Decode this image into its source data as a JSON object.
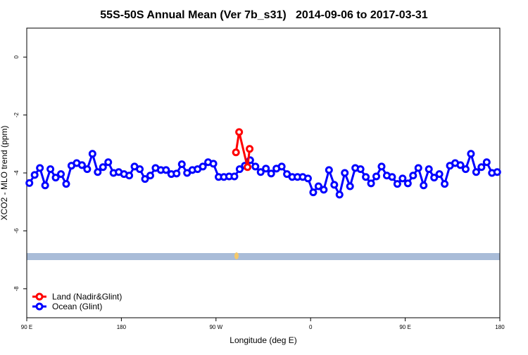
{
  "chart_data": {
    "type": "line",
    "title": "55S-50S Annual Mean (Ver 7b_s31)   2014-09-06 to 2017-03-31",
    "x_label": "Longitude (deg E)",
    "y_label": "XCO2 - MLO trend (ppm)",
    "xlim": [
      90,
      540
    ],
    "ylim": [
      -9,
      1
    ],
    "xticks": [
      {
        "value": 90,
        "label": "90 E"
      },
      180,
      {
        "value": 270,
        "label": "90 W"
      },
      {
        "value": 360,
        "label": "0"
      },
      {
        "value": 450,
        "label": "90 E"
      },
      {
        "value": 540,
        "label": "180"
      }
    ],
    "yticks": [
      0,
      -2,
      -4,
      -6,
      -8
    ],
    "legend": "bottom-left",
    "series": [
      {
        "name": "Land (Nadir&Glint)",
        "color": "#ff0000",
        "x": [
          289,
          292,
          300,
          302
        ],
        "values": [
          -3.29,
          -2.59,
          -3.8,
          -3.17
        ]
      },
      {
        "name": "Ocean (Glint)",
        "color": "#0000ff",
        "x": [
          92.5,
          97.5,
          102.5,
          107.5,
          112.5,
          117.5,
          122.5,
          127.5,
          132.5,
          137.5,
          142.5,
          147.5,
          152.5,
          157.5,
          162.5,
          167.5,
          172.5,
          177.5,
          182.5,
          187.5,
          192.5,
          197.5,
          202.5,
          207.5,
          212.5,
          217.5,
          222.5,
          227.5,
          232.5,
          237.5,
          242.5,
          247.5,
          252.5,
          257.5,
          262.5,
          267.5,
          272.5,
          277.5,
          282.5,
          287.5,
          292.5,
          297.5,
          302.5,
          307.5,
          312.5,
          317.5,
          322.5,
          327.5,
          332.5,
          337.5,
          342.5,
          347.5,
          352.5,
          357.5,
          362.5,
          367.5,
          372.5,
          377.5,
          382.5,
          387.5,
          392.5,
          397.5,
          402.5,
          407.5,
          412.5,
          417.5,
          422.5,
          427.5,
          432.5,
          437.5,
          442.5,
          447.5,
          452.5,
          457.5,
          462.5,
          467.5,
          472.5,
          477.5,
          482.5,
          487.5,
          492.5,
          497.5,
          502.5,
          507.5,
          512.5,
          517.5,
          522.5,
          527.5,
          532.5,
          537.5
        ],
        "values": [
          -4.35,
          -4.07,
          -3.83,
          -4.43,
          -3.87,
          -4.16,
          -4.04,
          -4.38,
          -3.75,
          -3.66,
          -3.73,
          -3.87,
          -3.34,
          -3.97,
          -3.8,
          -3.63,
          -4.0,
          -3.97,
          -4.04,
          -4.09,
          -3.78,
          -3.87,
          -4.21,
          -4.09,
          -3.83,
          -3.9,
          -3.9,
          -4.04,
          -4.02,
          -3.7,
          -4.0,
          -3.9,
          -3.87,
          -3.78,
          -3.63,
          -3.68,
          -4.14,
          -4.14,
          -4.12,
          -4.12,
          -3.87,
          -3.75,
          -3.56,
          -3.78,
          -3.97,
          -3.85,
          -4.02,
          -3.85,
          -3.78,
          -4.04,
          -4.14,
          -4.14,
          -4.14,
          -4.19,
          -4.67,
          -4.46,
          -4.58,
          -3.9,
          -4.41,
          -4.75,
          -4.0,
          -4.46,
          -3.83,
          -3.87,
          -4.14,
          -4.36,
          -4.12,
          -3.78,
          -4.09,
          -4.14,
          -4.38,
          -4.19,
          -4.36,
          -4.09,
          -3.83,
          -4.43,
          -3.87,
          -4.16,
          -4.04,
          -4.38,
          -3.75,
          -3.66,
          -3.73,
          -3.87,
          -3.34,
          -3.97,
          -3.8,
          -3.63,
          -4.0,
          -3.97
        ]
      }
    ]
  }
}
